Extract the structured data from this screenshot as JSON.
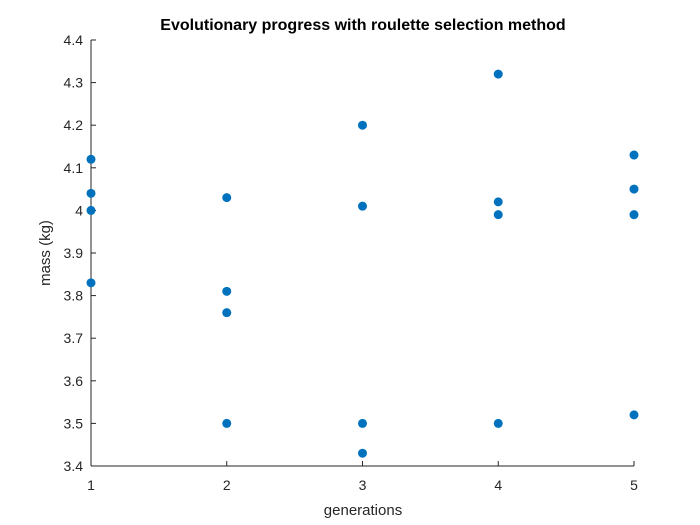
{
  "chart_data": {
    "type": "scatter",
    "title": "Evolutionary progress with roulette selection method",
    "xlabel": "generations",
    "ylabel": "mass (kg)",
    "xlim": [
      1,
      5
    ],
    "ylim": [
      3.4,
      4.4
    ],
    "xticks": [
      "1",
      "2",
      "3",
      "4",
      "5"
    ],
    "yticks": [
      "3.4",
      "3.5",
      "3.6",
      "3.7",
      "3.8",
      "3.9",
      "4",
      "4.1",
      "4.2",
      "4.3",
      "4.4"
    ],
    "grid": false,
    "marker_color": "#0072BD",
    "series": [
      {
        "points": [
          {
            "x": 1,
            "y": 4.12
          },
          {
            "x": 1,
            "y": 4.04
          },
          {
            "x": 1,
            "y": 4.0
          },
          {
            "x": 1,
            "y": 3.83
          },
          {
            "x": 2,
            "y": 4.03
          },
          {
            "x": 2,
            "y": 3.81
          },
          {
            "x": 2,
            "y": 3.76
          },
          {
            "x": 2,
            "y": 3.5
          },
          {
            "x": 3,
            "y": 4.2
          },
          {
            "x": 3,
            "y": 4.01
          },
          {
            "x": 3,
            "y": 3.5
          },
          {
            "x": 3,
            "y": 3.43
          },
          {
            "x": 4,
            "y": 4.32
          },
          {
            "x": 4,
            "y": 4.02
          },
          {
            "x": 4,
            "y": 3.99
          },
          {
            "x": 4,
            "y": 3.5
          },
          {
            "x": 5,
            "y": 4.13
          },
          {
            "x": 5,
            "y": 4.05
          },
          {
            "x": 5,
            "y": 3.99
          },
          {
            "x": 5,
            "y": 3.52
          }
        ]
      }
    ]
  }
}
